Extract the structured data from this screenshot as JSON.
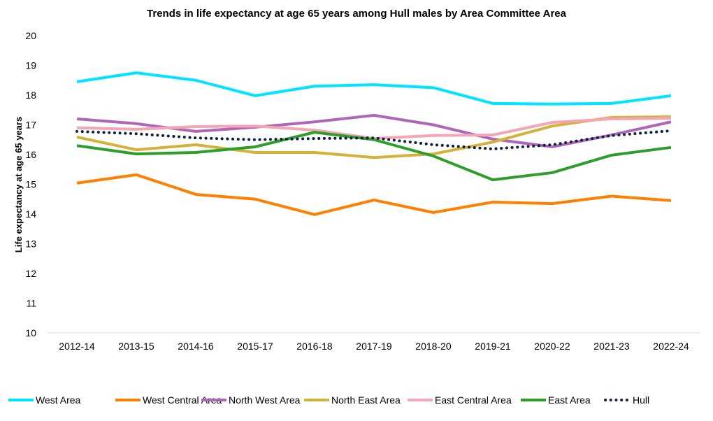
{
  "chart_data": {
    "type": "line",
    "title": "Trends in life expectancy at  age 65 years among Hull males by Area Committee Area",
    "xlabel": "",
    "ylabel": "Life expectancy at  age 65 years",
    "ylim": [
      10,
      20
    ],
    "yticks": [
      "10",
      "11",
      "12",
      "13",
      "14",
      "15",
      "16",
      "17",
      "18",
      "19",
      "20"
    ],
    "grid": false,
    "legend_position": "bottom",
    "categories": [
      "2012-14",
      "2013-15",
      "2014-16",
      "2015-17",
      "2016-18",
      "2017-19",
      "2018-20",
      "2019-21",
      "2020-22",
      "2021-23",
      "2022-24"
    ],
    "series": [
      {
        "name": "West Area",
        "color": "#00E5FF",
        "style": "solid",
        "values": [
          18.45,
          18.75,
          18.5,
          17.98,
          18.3,
          18.35,
          18.25,
          17.72,
          17.7,
          17.72,
          17.98
        ]
      },
      {
        "name": "West Central Area",
        "color": "#FF7F00",
        "style": "solid",
        "values": [
          15.04,
          15.32,
          14.66,
          14.5,
          13.98,
          14.47,
          14.05,
          14.4,
          14.35,
          14.6,
          14.45
        ]
      },
      {
        "name": "North West Area",
        "color": "#B066B8",
        "style": "solid",
        "values": [
          17.2,
          17.04,
          16.78,
          16.92,
          17.1,
          17.32,
          17.0,
          16.52,
          16.26,
          16.66,
          17.1
        ]
      },
      {
        "name": "North East Area",
        "color": "#D4B23A",
        "style": "solid",
        "values": [
          16.59,
          16.16,
          16.33,
          16.07,
          16.07,
          15.9,
          16.02,
          16.42,
          16.96,
          17.25,
          17.27
        ]
      },
      {
        "name": "East Central Area",
        "color": "#F4A6B4",
        "style": "solid",
        "values": [
          16.9,
          16.85,
          16.94,
          16.96,
          16.82,
          16.54,
          16.64,
          16.66,
          17.08,
          17.2,
          17.22
        ]
      },
      {
        "name": "East Area",
        "color": "#2E9E2A",
        "style": "solid",
        "values": [
          16.3,
          16.02,
          16.07,
          16.26,
          16.75,
          16.5,
          15.95,
          15.15,
          15.39,
          15.98,
          16.24
        ]
      },
      {
        "name": "Hull",
        "color": "#0D2240",
        "style": "dotted",
        "values": [
          16.78,
          16.7,
          16.56,
          16.5,
          16.54,
          16.56,
          16.33,
          16.19,
          16.33,
          16.64,
          16.8
        ]
      }
    ]
  }
}
